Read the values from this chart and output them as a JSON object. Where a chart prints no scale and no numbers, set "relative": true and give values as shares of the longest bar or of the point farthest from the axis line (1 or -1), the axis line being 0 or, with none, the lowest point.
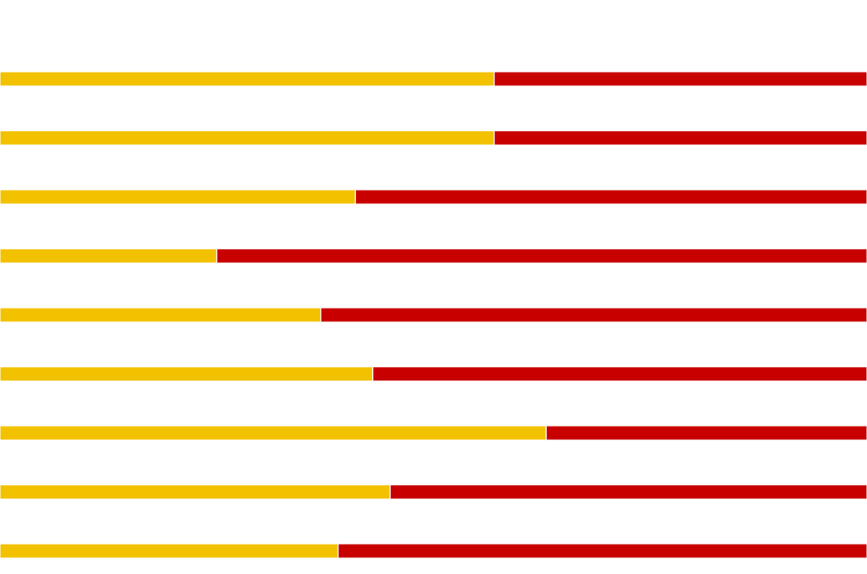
{
  "chart_data": {
    "type": "bar",
    "orientation": "horizontal",
    "stacked": true,
    "relative": true,
    "categories": [
      null,
      null,
      null,
      null,
      null,
      null,
      null,
      null,
      null
    ],
    "series": [
      {
        "color": "#f2c200",
        "values": [
          0.57,
          0.57,
          0.41,
          0.25,
          0.37,
          0.43,
          0.63,
          0.45,
          0.39
        ]
      },
      {
        "color": "#c80000",
        "values": [
          0.43,
          0.43,
          0.59,
          0.75,
          0.63,
          0.57,
          0.37,
          0.55,
          0.61
        ]
      }
    ],
    "legend": false
  }
}
